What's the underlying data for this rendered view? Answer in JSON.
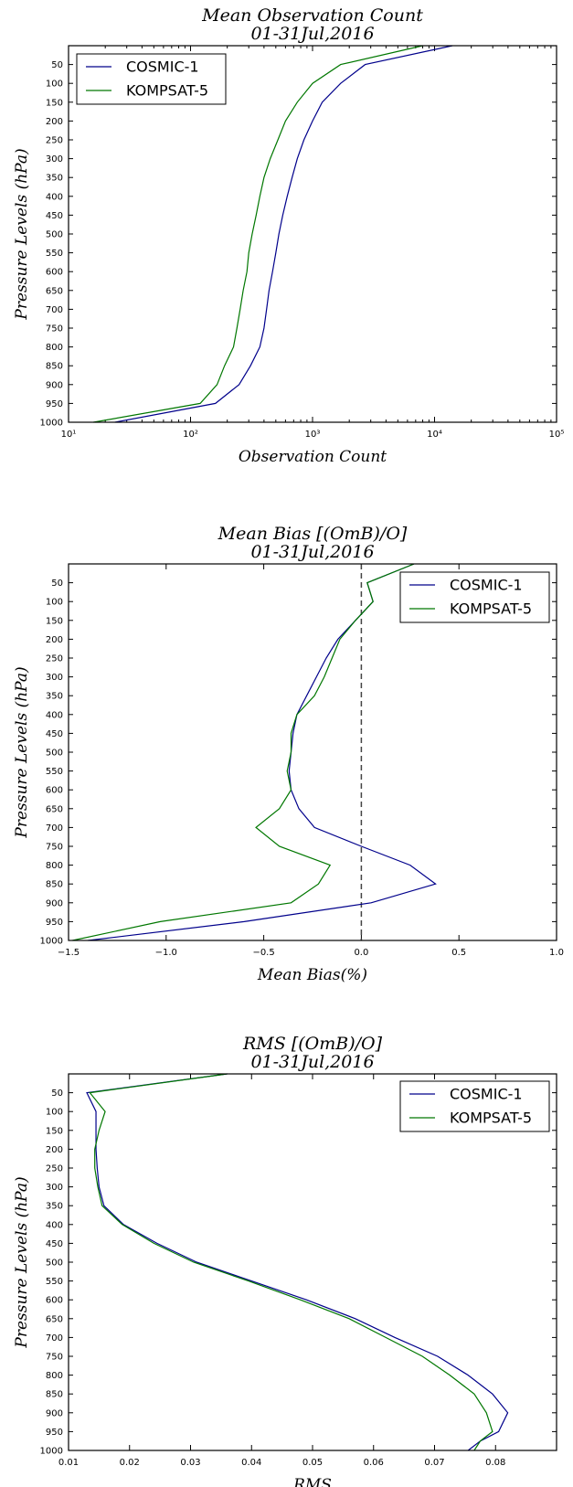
{
  "chart_data": [
    {
      "type": "line",
      "title": "Mean Observation Count",
      "subtitle": "01-31Jul,2016",
      "xlabel": "Observation Count",
      "ylabel": "Pressure Levels (hPa)",
      "xscale": "log",
      "xlim": [
        10,
        100000
      ],
      "ylim": [
        1000,
        0
      ],
      "xticks": [
        {
          "value": 10,
          "label": "10¹"
        },
        {
          "value": 100,
          "label": "10²"
        },
        {
          "value": 1000,
          "label": "10³"
        },
        {
          "value": 10000,
          "label": "10⁴"
        },
        {
          "value": 100000,
          "label": "10⁵"
        }
      ],
      "yticks": [
        50,
        100,
        150,
        200,
        250,
        300,
        350,
        400,
        450,
        500,
        550,
        600,
        650,
        700,
        750,
        800,
        850,
        900,
        950,
        1000
      ],
      "legend_position": "top-left",
      "series": [
        {
          "name": "COSMIC-1",
          "color": "#00008b",
          "x": [
            14000,
            2700,
            1700,
            1200,
            1000,
            850,
            750,
            680,
            620,
            570,
            530,
            500,
            470,
            440,
            420,
            400,
            370,
            310,
            250,
            160,
            24
          ],
          "y": [
            0,
            50,
            100,
            150,
            200,
            250,
            300,
            350,
            400,
            450,
            500,
            550,
            600,
            650,
            700,
            750,
            800,
            850,
            900,
            950,
            1000
          ]
        },
        {
          "name": "KOMPSAT-5",
          "color": "#007700",
          "x": [
            8000,
            1700,
            1000,
            750,
            600,
            520,
            450,
            400,
            370,
            345,
            320,
            300,
            290,
            270,
            255,
            240,
            225,
            190,
            165,
            120,
            16
          ],
          "y": [
            0,
            50,
            100,
            150,
            200,
            250,
            300,
            350,
            400,
            450,
            500,
            550,
            600,
            650,
            700,
            750,
            800,
            850,
            900,
            950,
            1000
          ]
        }
      ]
    },
    {
      "type": "line",
      "title": "Mean Bias [(OmB)/O]",
      "subtitle": "01-31Jul,2016",
      "xlabel": "Mean Bias(%)",
      "ylabel": "Pressure Levels (hPa)",
      "xlim": [
        -1.5,
        1.0
      ],
      "ylim": [
        1000,
        0
      ],
      "xticks": [
        {
          "value": -1.5,
          "label": "−1.5"
        },
        {
          "value": -1.0,
          "label": "−1.0"
        },
        {
          "value": -0.5,
          "label": "−0.5"
        },
        {
          "value": 0.0,
          "label": "0.0"
        },
        {
          "value": 0.5,
          "label": "0.5"
        },
        {
          "value": 1.0,
          "label": "1.0"
        }
      ],
      "yticks": [
        50,
        100,
        150,
        200,
        250,
        300,
        350,
        400,
        450,
        500,
        550,
        600,
        650,
        700,
        750,
        800,
        850,
        900,
        950,
        1000
      ],
      "reference_line": {
        "x": 0.0,
        "style": "dashed"
      },
      "legend_position": "top-right",
      "series": [
        {
          "name": "COSMIC-1",
          "color": "#00008b",
          "x": [
            0.27,
            0.03,
            0.06,
            -0.03,
            -0.12,
            -0.18,
            -0.23,
            -0.28,
            -0.33,
            -0.35,
            -0.36,
            -0.37,
            -0.36,
            -0.32,
            -0.24,
            0.0,
            0.25,
            0.38,
            0.05,
            -0.6,
            -1.4
          ],
          "y": [
            0,
            50,
            100,
            150,
            200,
            250,
            300,
            350,
            400,
            450,
            500,
            550,
            600,
            650,
            700,
            750,
            800,
            850,
            900,
            950,
            1000
          ]
        },
        {
          "name": "KOMPSAT-5",
          "color": "#007700",
          "x": [
            0.27,
            0.03,
            0.06,
            -0.03,
            -0.11,
            -0.15,
            -0.19,
            -0.24,
            -0.33,
            -0.36,
            -0.36,
            -0.38,
            -0.36,
            -0.42,
            -0.54,
            -0.42,
            -0.16,
            -0.22,
            -0.36,
            -1.03,
            -1.48
          ],
          "y": [
            0,
            50,
            100,
            150,
            200,
            250,
            300,
            350,
            400,
            450,
            500,
            550,
            600,
            650,
            700,
            750,
            800,
            850,
            900,
            950,
            1000
          ]
        }
      ]
    },
    {
      "type": "line",
      "title": "RMS [(OmB)/O]",
      "subtitle": "01-31Jul,2016",
      "xlabel": "RMS",
      "ylabel": "Pressure Levels (hPa)",
      "xlim": [
        0.01,
        0.09
      ],
      "ylim": [
        1000,
        0
      ],
      "xticks": [
        {
          "value": 0.01,
          "label": "0.01"
        },
        {
          "value": 0.02,
          "label": "0.02"
        },
        {
          "value": 0.03,
          "label": "0.03"
        },
        {
          "value": 0.04,
          "label": "0.04"
        },
        {
          "value": 0.05,
          "label": "0.05"
        },
        {
          "value": 0.06,
          "label": "0.06"
        },
        {
          "value": 0.07,
          "label": "0.07"
        },
        {
          "value": 0.08,
          "label": "0.08"
        }
      ],
      "yticks": [
        50,
        100,
        150,
        200,
        250,
        300,
        350,
        400,
        450,
        500,
        550,
        600,
        650,
        700,
        750,
        800,
        850,
        900,
        950,
        1000
      ],
      "legend_position": "top-right",
      "series": [
        {
          "name": "COSMIC-1",
          "color": "#00008b",
          "x": [
            0.036,
            0.013,
            0.0145,
            0.0145,
            0.0145,
            0.0147,
            0.015,
            0.0158,
            0.019,
            0.0245,
            0.031,
            0.04,
            0.049,
            0.057,
            0.0635,
            0.0705,
            0.0755,
            0.0795,
            0.082,
            0.0805,
            0.0775,
            0.0755
          ],
          "y": [
            0,
            50,
            100,
            150,
            200,
            250,
            300,
            350,
            400,
            450,
            500,
            550,
            600,
            650,
            700,
            750,
            800,
            850,
            900,
            950,
            975,
            1000
          ]
        },
        {
          "name": "KOMPSAT-5",
          "color": "#007700",
          "x": [
            0.036,
            0.0135,
            0.016,
            0.015,
            0.0143,
            0.0143,
            0.0148,
            0.0155,
            0.0188,
            0.024,
            0.0305,
            0.0395,
            0.048,
            0.056,
            0.062,
            0.068,
            0.0725,
            0.0765,
            0.0785,
            0.0795,
            0.0775,
            0.0765
          ],
          "y": [
            0,
            50,
            100,
            150,
            200,
            250,
            300,
            350,
            400,
            450,
            500,
            550,
            600,
            650,
            700,
            750,
            800,
            850,
            900,
            950,
            975,
            1000
          ]
        }
      ]
    }
  ]
}
